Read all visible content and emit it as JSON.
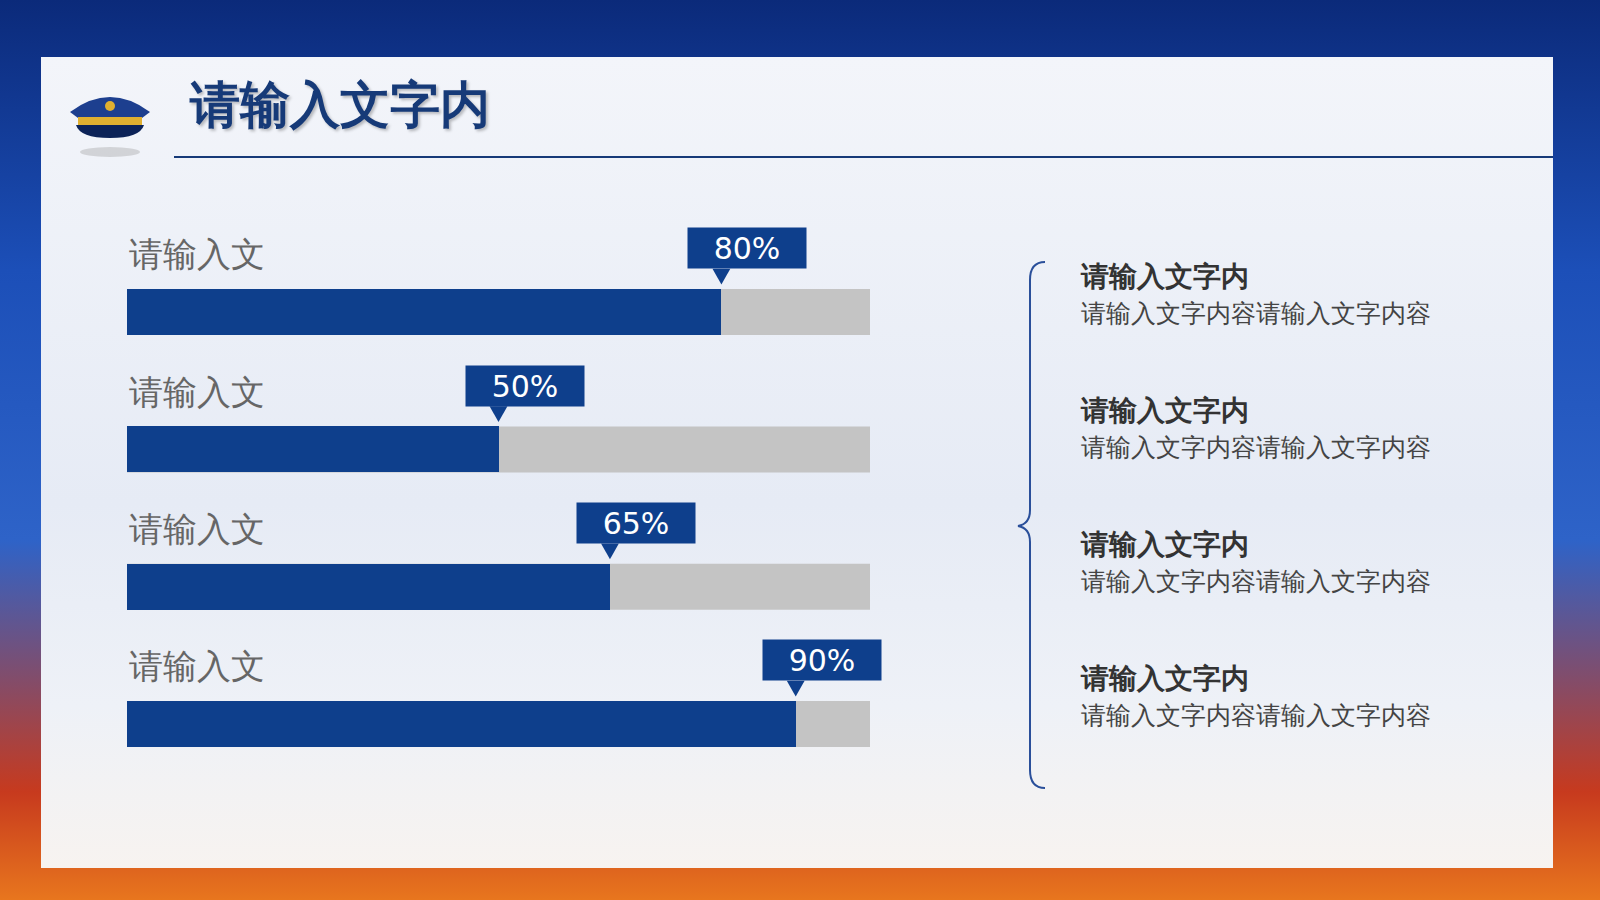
{
  "title": "请输入文字内",
  "chart_data": {
    "type": "bar",
    "orientation": "horizontal",
    "categories": [
      "请输入文",
      "请输入文",
      "请输入文",
      "请输入文"
    ],
    "values": [
      80,
      50,
      65,
      90
    ],
    "value_labels": [
      "80%",
      "50%",
      "65%",
      "90%"
    ],
    "data_labels": true,
    "color": "#0e3f8c",
    "xlim": [
      0,
      100
    ],
    "tick_labels": false,
    "grid": false
  },
  "notes": [
    {
      "heading": "请输入文字内",
      "text": "请输入文字内容请输入文字内容"
    },
    {
      "heading": "请输入文字内",
      "text": "请输入文字内容请输入文字内容"
    },
    {
      "heading": "请输入文字内",
      "text": "请输入文字内容请输入文字内容"
    },
    {
      "heading": "请输入文字内",
      "text": "请输入文字内容请输入文字内容"
    }
  ]
}
